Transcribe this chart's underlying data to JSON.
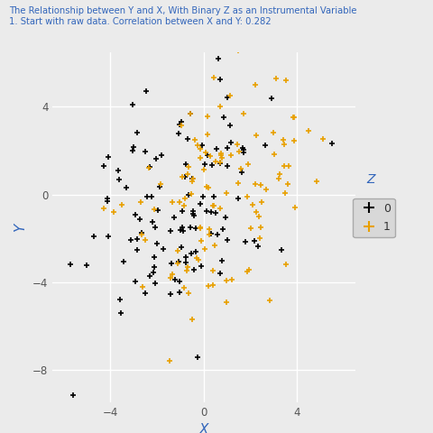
{
  "title_line1": "The Relationship between Y and X, With Binary Z as an Instrumental Variable",
  "title_line2": "1. Start with raw data. Correlation between X and Y: 0.282",
  "xlabel": "X",
  "ylabel": "Y",
  "xlim": [
    -6.5,
    6.5
  ],
  "ylim": [
    -9.5,
    6.5
  ],
  "xticks": [
    -4,
    0,
    4
  ],
  "yticks": [
    -8,
    -4,
    0,
    4
  ],
  "color_0": "#000000",
  "color_1": "#E8A000",
  "legend_title": "Z",
  "legend_labels": [
    "0",
    "1"
  ],
  "bg_color": "#EBEBEB",
  "grid_color": "#FFFFFF",
  "title_color": "#3366BB",
  "marker_size": 18,
  "marker_style": "+"
}
